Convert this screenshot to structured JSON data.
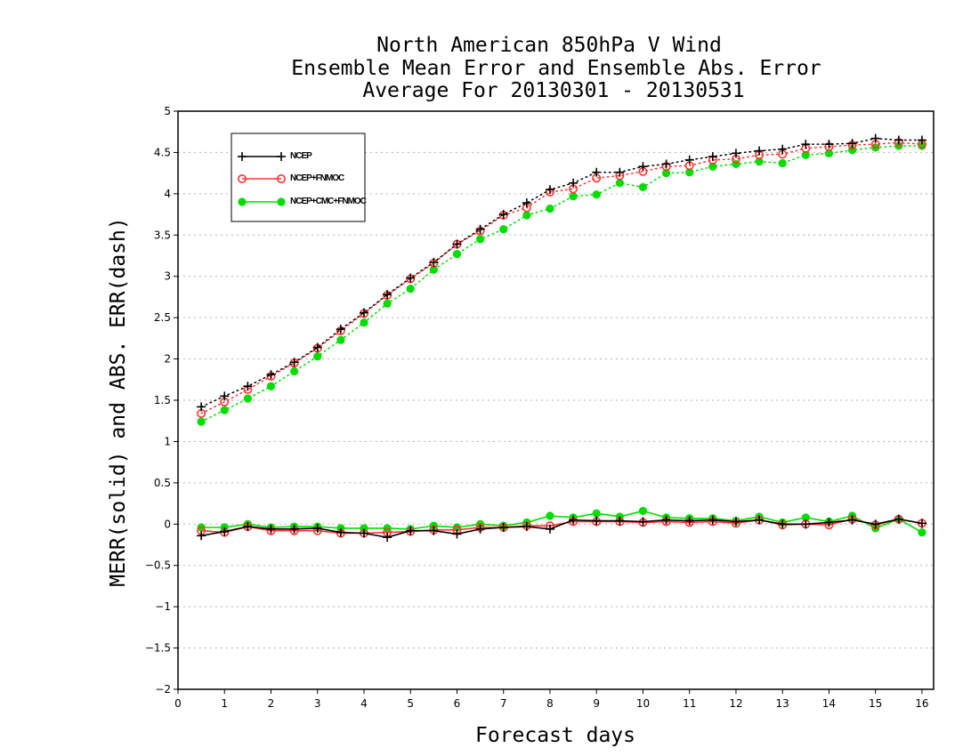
{
  "chart_data": {
    "type": "line",
    "title": [
      "North American 850hPa V Wind",
      "Ensemble Mean Error and Ensemble Abs. Error",
      "Average For 20130301 - 20130531"
    ],
    "xlabel": "Forecast days",
    "ylabel": "MERR(solid) and ABS. ERR(dash)",
    "xlim": [
      0,
      16.25
    ],
    "ylim": [
      -2,
      5
    ],
    "xticks": [
      0,
      1,
      2,
      3,
      4,
      5,
      6,
      7,
      8,
      9,
      10,
      11,
      12,
      13,
      14,
      15,
      16
    ],
    "xtick_labels": [
      "0",
      "1",
      "2",
      "3",
      "4",
      "5",
      "6",
      "7",
      "8",
      "9",
      "10",
      "11",
      "12",
      "13",
      "14",
      "15",
      "16"
    ],
    "yticks": [
      -2,
      -1.5,
      -1,
      -0.5,
      0,
      0.5,
      1,
      1.5,
      2,
      2.5,
      3,
      3.5,
      4,
      4.5,
      5
    ],
    "ytick_labels": [
      "−2",
      "−1.5",
      "−1",
      "−0.5",
      "0",
      "0.5",
      "1",
      "1.5",
      "2",
      "2.5",
      "3",
      "3.5",
      "4",
      "4.5",
      "5"
    ],
    "grid": "horizontal dotted",
    "legend_position": "top-left",
    "x": [
      0.5,
      1,
      1.5,
      2,
      2.5,
      3,
      3.5,
      4,
      4.5,
      5,
      5.5,
      6,
      6.5,
      7,
      7.5,
      8,
      8.5,
      9,
      9.5,
      10,
      10.5,
      11,
      11.5,
      12,
      12.5,
      13,
      13.5,
      14,
      14.5,
      15,
      15.5,
      16
    ],
    "series": [
      {
        "name": "NCEP",
        "color": "#000000",
        "marker": "plus",
        "abs_error": [
          1.42,
          1.55,
          1.67,
          1.81,
          1.96,
          2.14,
          2.36,
          2.56,
          2.78,
          2.98,
          3.17,
          3.39,
          3.57,
          3.75,
          3.89,
          4.05,
          4.13,
          4.26,
          4.26,
          4.33,
          4.36,
          4.41,
          4.45,
          4.49,
          4.52,
          4.54,
          4.6,
          4.6,
          4.61,
          4.67,
          4.65,
          4.65
        ],
        "mean_error": [
          -0.14,
          -0.09,
          -0.03,
          -0.06,
          -0.06,
          -0.05,
          -0.1,
          -0.11,
          -0.16,
          -0.08,
          -0.08,
          -0.12,
          -0.06,
          -0.04,
          -0.03,
          -0.06,
          0.05,
          0.04,
          0.04,
          0.03,
          0.05,
          0.04,
          0.05,
          0.03,
          0.05,
          0.0,
          0.0,
          0.02,
          0.05,
          0.0,
          0.06,
          0.01
        ]
      },
      {
        "name": "NCEP+FNMOC",
        "color": "#ff3333",
        "marker": "open-circle",
        "abs_error": [
          1.34,
          1.48,
          1.63,
          1.79,
          1.95,
          2.13,
          2.34,
          2.55,
          2.77,
          2.97,
          3.16,
          3.39,
          3.55,
          3.74,
          3.83,
          4.02,
          4.06,
          4.19,
          4.22,
          4.27,
          4.33,
          4.34,
          4.41,
          4.42,
          4.47,
          4.48,
          4.55,
          4.57,
          4.59,
          4.6,
          4.62,
          4.6
        ],
        "mean_error": [
          -0.08,
          -0.1,
          -0.03,
          -0.08,
          -0.08,
          -0.08,
          -0.11,
          -0.11,
          -0.1,
          -0.09,
          -0.07,
          -0.07,
          -0.04,
          -0.04,
          -0.02,
          -0.02,
          0.03,
          0.03,
          0.03,
          0.02,
          0.03,
          0.02,
          0.03,
          0.01,
          0.05,
          -0.01,
          0.0,
          -0.01,
          0.06,
          -0.01,
          0.06,
          0.01
        ]
      },
      {
        "name": "NCEP+CMC+FNMOC",
        "color": "#00dd00",
        "marker": "filled-circle",
        "abs_error": [
          1.24,
          1.38,
          1.52,
          1.67,
          1.85,
          2.03,
          2.23,
          2.44,
          2.67,
          2.85,
          3.08,
          3.27,
          3.45,
          3.57,
          3.74,
          3.82,
          3.97,
          3.99,
          4.13,
          4.08,
          4.25,
          4.26,
          4.33,
          4.36,
          4.39,
          4.37,
          4.47,
          4.49,
          4.53,
          4.56,
          4.58,
          4.58
        ],
        "mean_error": [
          -0.04,
          -0.04,
          0.0,
          -0.04,
          -0.03,
          -0.03,
          -0.05,
          -0.05,
          -0.05,
          -0.06,
          -0.02,
          -0.04,
          0.0,
          -0.02,
          0.02,
          0.1,
          0.08,
          0.13,
          0.09,
          0.16,
          0.08,
          0.07,
          0.07,
          0.04,
          0.09,
          0.02,
          0.08,
          0.03,
          0.1,
          -0.05,
          0.06,
          -0.1
        ]
      }
    ]
  }
}
